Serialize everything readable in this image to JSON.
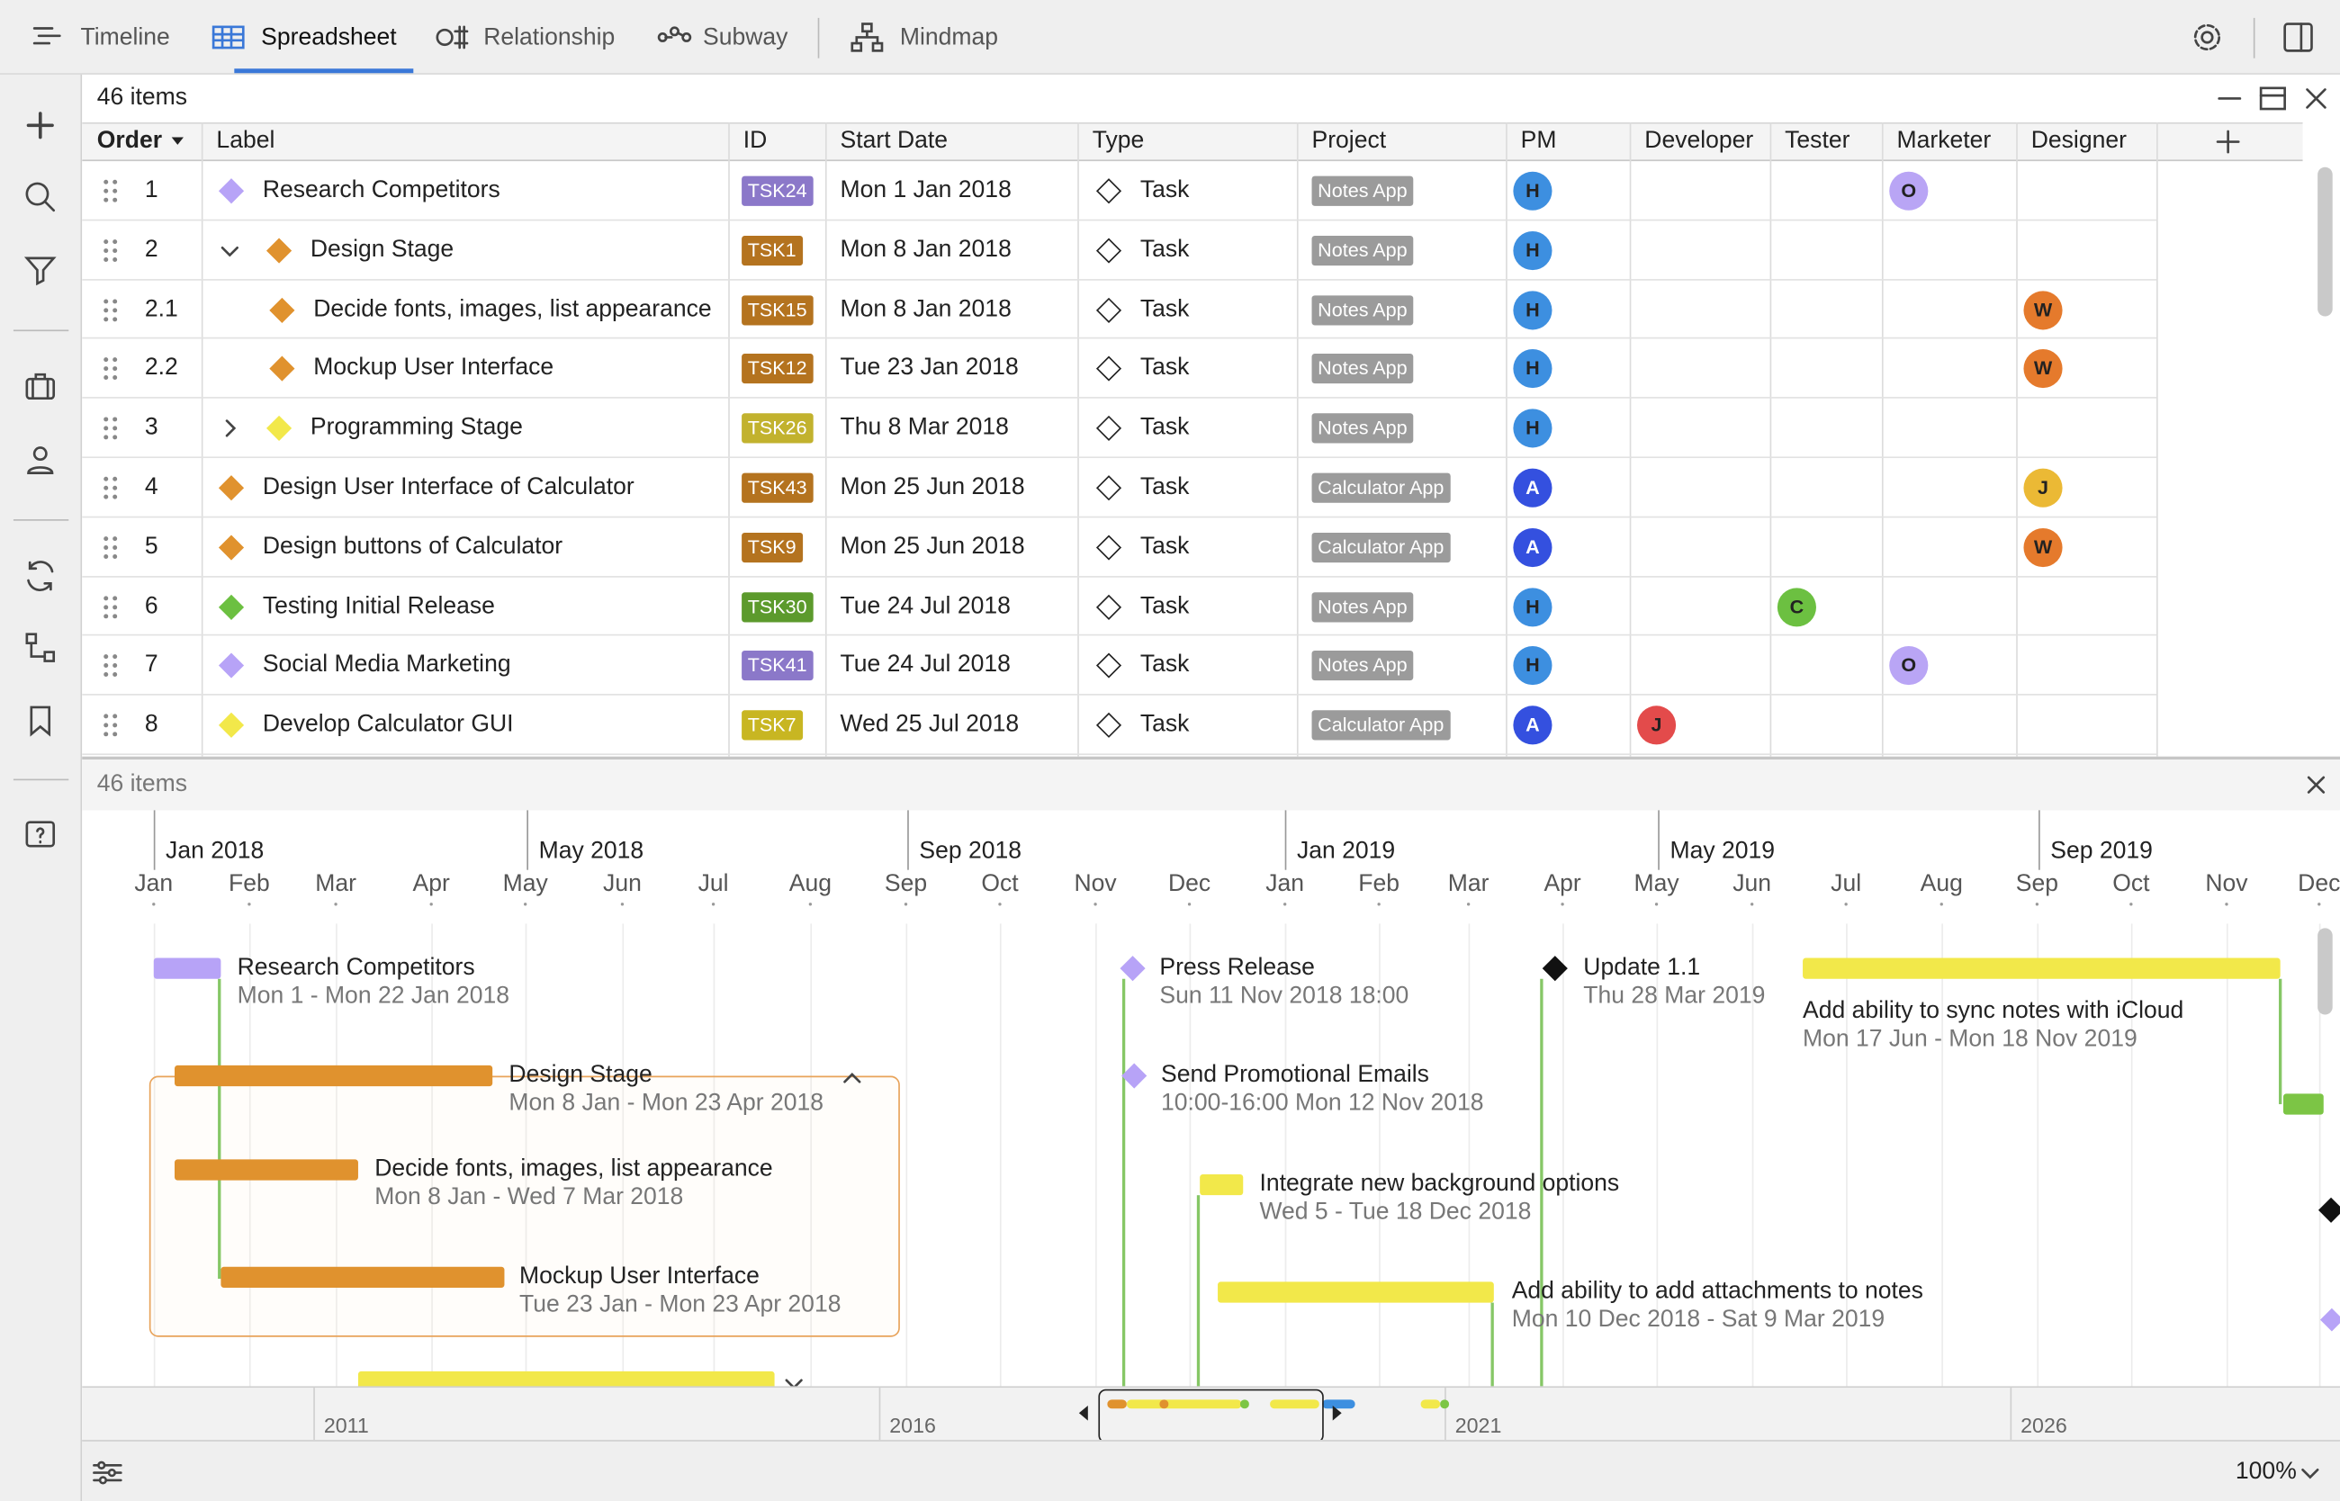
{
  "toolbar": {
    "tabs": [
      "Timeline",
      "Spreadsheet",
      "Relationship",
      "Subway",
      "Mindmap"
    ]
  },
  "grid": {
    "count": "46 items",
    "columns": [
      "Order",
      "Label",
      "ID",
      "Start Date",
      "Type",
      "Project",
      "PM",
      "Developer",
      "Tester",
      "Marketer",
      "Designer"
    ],
    "rows": [
      {
        "order": "1",
        "label": "Research Competitors",
        "color": "#b7a3f7",
        "id": "TSK24",
        "id_color": "#8b78c9",
        "start": "Mon 1 Jan 2018",
        "type": "Task",
        "project": "Notes App",
        "pm": {
          "initial": "H",
          "color": "#3d8fe0"
        },
        "marketer": {
          "initial": "O",
          "color": "#b9a5f5"
        }
      },
      {
        "order": "2",
        "label": "Design Stage",
        "toggle": "expanded",
        "color": "#e0922e",
        "id": "TSK1",
        "id_color": "#b4731f",
        "start": "Mon 8 Jan 2018",
        "type": "Task",
        "project": "Notes App",
        "pm": {
          "initial": "H",
          "color": "#3d8fe0"
        }
      },
      {
        "order": "2.1",
        "label": "Decide fonts, images, list appearance",
        "color": "#e0922e",
        "id": "TSK15",
        "id_color": "#b4731f",
        "start": "Mon 8 Jan 2018",
        "type": "Task",
        "project": "Notes App",
        "pm": {
          "initial": "H",
          "color": "#3d8fe0"
        },
        "designer": {
          "initial": "W",
          "color": "#e57a2c"
        }
      },
      {
        "order": "2.2",
        "label": "Mockup User Interface",
        "color": "#e0922e",
        "id": "TSK12",
        "id_color": "#b4731f",
        "start": "Tue 23 Jan 2018",
        "type": "Task",
        "project": "Notes App",
        "pm": {
          "initial": "H",
          "color": "#3d8fe0"
        },
        "designer": {
          "initial": "W",
          "color": "#e57a2c"
        }
      },
      {
        "order": "3",
        "label": "Programming Stage",
        "toggle": "collapsed",
        "color": "#f2e84a",
        "id": "TSK26",
        "id_color": "#c2b22e",
        "start": "Thu 8 Mar 2018",
        "type": "Task",
        "project": "Notes App",
        "pm": {
          "initial": "H",
          "color": "#3d8fe0"
        }
      },
      {
        "order": "4",
        "label": "Design User Interface of Calculator",
        "color": "#e0922e",
        "id": "TSK43",
        "id_color": "#b4731f",
        "start": "Mon 25 Jun 2018",
        "type": "Task",
        "project": "Calculator App",
        "pm": {
          "initial": "A",
          "color": "#3450df"
        },
        "designer": {
          "initial": "J",
          "color": "#ebb935"
        }
      },
      {
        "order": "5",
        "label": "Design buttons of Calculator",
        "color": "#e0922e",
        "id": "TSK9",
        "id_color": "#b4731f",
        "start": "Mon 25 Jun 2018",
        "type": "Task",
        "project": "Calculator App",
        "pm": {
          "initial": "A",
          "color": "#3450df"
        },
        "designer": {
          "initial": "W",
          "color": "#e57a2c"
        }
      },
      {
        "order": "6",
        "label": "Testing Initial Release",
        "color": "#6cc041",
        "id": "TSK30",
        "id_color": "#5c9a2c",
        "start": "Tue 24 Jul 2018",
        "type": "Task",
        "project": "Notes App",
        "pm": {
          "initial": "H",
          "color": "#3d8fe0"
        },
        "tester": {
          "initial": "C",
          "color": "#6cc041"
        }
      },
      {
        "order": "7",
        "label": "Social Media Marketing",
        "color": "#b7a3f7",
        "id": "TSK41",
        "id_color": "#8b78c9",
        "start": "Tue 24 Jul 2018",
        "type": "Task",
        "project": "Notes App",
        "pm": {
          "initial": "H",
          "color": "#3d8fe0"
        },
        "marketer": {
          "initial": "O",
          "color": "#b9a5f5"
        }
      },
      {
        "order": "8",
        "label": "Develop Calculator GUI",
        "color": "#f2e84a",
        "id": "TSK7",
        "id_color": "#c8b622",
        "start": "Wed 25 Jul 2018",
        "type": "Task",
        "project": "Calculator App",
        "pm": {
          "initial": "A",
          "color": "#3450df"
        },
        "developer": {
          "initial": "J",
          "color": "#e34b4b"
        }
      }
    ]
  },
  "timeline": {
    "count": "46 items",
    "years": [
      "Jan 2018",
      "May 2018",
      "Sep 2018",
      "Jan 2019",
      "May 2019",
      "Sep 2019"
    ],
    "months": [
      "Jan",
      "Feb",
      "Mar",
      "Apr",
      "May",
      "Jun",
      "Jul",
      "Aug",
      "Sep",
      "Oct",
      "Nov",
      "Dec",
      "Jan",
      "Feb",
      "Mar",
      "Apr",
      "May",
      "Jun",
      "Jul",
      "Aug",
      "Sep",
      "Oct",
      "Nov",
      "Dec"
    ],
    "tasks": [
      {
        "label": "Research Competitors",
        "dates": "Mon 1 - Mon 22 Jan 2018",
        "color": "#b7a3f7",
        "kind": "bar"
      },
      {
        "label": "Design Stage",
        "dates": "Mon 8 Jan - Mon 23 Apr 2018",
        "color": "#e0922e",
        "kind": "bar"
      },
      {
        "label": "Decide fonts, images, list appearance",
        "dates": "Mon 8 Jan - Wed 7 Mar 2018",
        "color": "#e0922e",
        "kind": "bar"
      },
      {
        "label": "Mockup User Interface",
        "dates": "Tue 23 Jan - Mon 23 Apr 2018",
        "color": "#e0922e",
        "kind": "bar"
      },
      {
        "label": "Press Release",
        "dates": "Sun 11 Nov 2018 18:00",
        "color": "#b7a3f7",
        "kind": "milestone"
      },
      {
        "label": "Send Promotional Emails",
        "dates": "10:00-16:00 Mon 12 Nov 2018",
        "color": "#b7a3f7",
        "kind": "milestone"
      },
      {
        "label": "Integrate new background options",
        "dates": "Wed 5 - Tue 18 Dec 2018",
        "color": "#f2e84a",
        "kind": "bar"
      },
      {
        "label": "Add ability to add attachments to notes",
        "dates": "Mon 10 Dec 2018 - Sat 9 Mar 2019",
        "color": "#f2e84a",
        "kind": "bar"
      },
      {
        "label": "Update 1.1",
        "dates": "Thu 28 Mar 2019",
        "color": "#111111",
        "kind": "milestone"
      },
      {
        "label": "Add ability to sync notes with iCloud",
        "dates": "Mon 17 Jun - Mon 18 Nov 2019",
        "color": "#f2e84a",
        "kind": "bar"
      }
    ],
    "overview_years": [
      "2011",
      "2016",
      "2021",
      "2026"
    ]
  },
  "footer": {
    "zoom": "100%"
  }
}
